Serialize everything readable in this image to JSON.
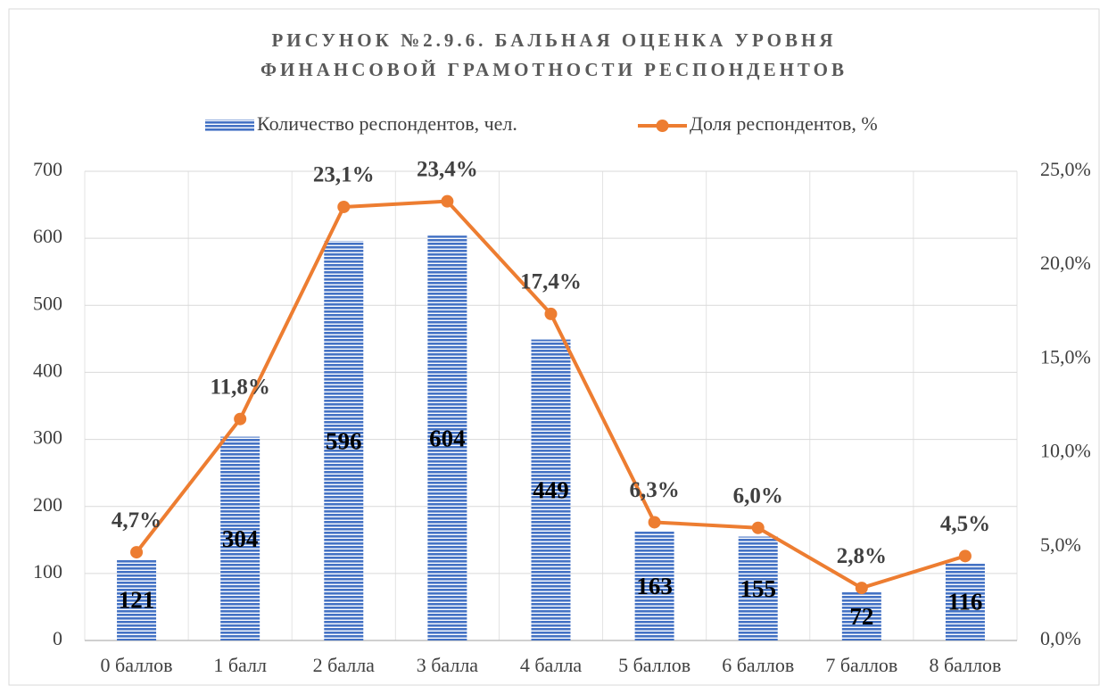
{
  "chart_data": {
    "type": "bar-line",
    "title": [
      "РИСУНОК №2.9.6. БАЛЬНАЯ ОЦЕНКА УРОВНЯ",
      "ФИНАНСОВОЙ ГРАМОТНОСТИ РЕСПОНДЕНТОВ"
    ],
    "categories": [
      "0 баллов",
      "1 балл",
      "2 балла",
      "3 балла",
      "4 балла",
      "5 баллов",
      "6 баллов",
      "7 баллов",
      "8 баллов"
    ],
    "series": [
      {
        "name": "Количество респондентов, чел.",
        "type": "bar",
        "color": "#4472c4",
        "values": [
          121,
          304,
          596,
          604,
          449,
          163,
          155,
          72,
          116
        ]
      },
      {
        "name": "Доля респондентов, %",
        "type": "line",
        "axis": "y2",
        "color": "#ed7d31",
        "values": [
          4.7,
          11.8,
          23.1,
          23.4,
          17.4,
          6.3,
          6.0,
          2.8,
          4.5
        ],
        "value_labels": [
          "4,7%",
          "11,8%",
          "23,1%",
          "23,4%",
          "17,4%",
          "6,3%",
          "6,0%",
          "2,8%",
          "4,5%"
        ]
      }
    ],
    "ylim": [
      0,
      700
    ],
    "yticks": [
      0,
      100,
      200,
      300,
      400,
      500,
      600,
      700
    ],
    "y2lim": [
      0,
      25
    ],
    "y2ticks": [
      {
        "value": 0,
        "label": "0,0%"
      },
      {
        "value": 5,
        "label": "5,0%"
      },
      {
        "value": 10,
        "label": "10,0%"
      },
      {
        "value": 15,
        "label": "15,0%"
      },
      {
        "value": 20,
        "label": "20,0%"
      },
      {
        "value": 25,
        "label": "25,0%"
      }
    ],
    "grid": true,
    "legend": "top"
  }
}
